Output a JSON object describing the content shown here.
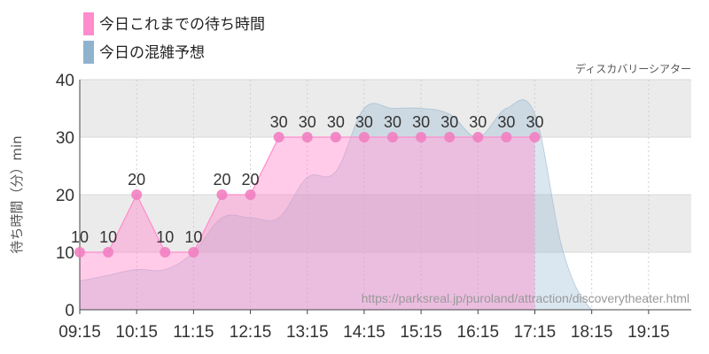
{
  "chart_data": {
    "type": "area",
    "legend_position": "top-left",
    "attraction_name": "ディスカバリーシアター",
    "ylabel": "待ち時間（分）min",
    "ylim": [
      0,
      40
    ],
    "yticks": [
      "0",
      "10",
      "20",
      "30",
      "40"
    ],
    "xticks": [
      "09:15",
      "10:15",
      "11:15",
      "12:15",
      "13:15",
      "14:15",
      "15:15",
      "16:15",
      "17:15",
      "18:15",
      "19:15"
    ],
    "xrange_hours": [
      9.25,
      20.0
    ],
    "grid": true,
    "series": [
      {
        "name": "今日これまでの待ち時間",
        "color": "#ff8ccc",
        "points": [
          {
            "t": "09:15",
            "v": 10
          },
          {
            "t": "09:45",
            "v": 10
          },
          {
            "t": "10:15",
            "v": 20
          },
          {
            "t": "10:45",
            "v": 10
          },
          {
            "t": "11:15",
            "v": 10
          },
          {
            "t": "11:45",
            "v": 20
          },
          {
            "t": "12:15",
            "v": 20
          },
          {
            "t": "12:45",
            "v": 30
          },
          {
            "t": "13:15",
            "v": 30
          },
          {
            "t": "13:45",
            "v": 30
          },
          {
            "t": "14:15",
            "v": 30
          },
          {
            "t": "14:45",
            "v": 30
          },
          {
            "t": "15:15",
            "v": 30
          },
          {
            "t": "15:45",
            "v": 30
          },
          {
            "t": "16:15",
            "v": 30
          },
          {
            "t": "16:45",
            "v": 30
          },
          {
            "t": "17:15",
            "v": 30
          }
        ],
        "labels": [
          "10",
          "10",
          "20",
          "10",
          "10",
          "20",
          "20",
          "30",
          "30",
          "30",
          "30",
          "30",
          "30",
          "30",
          "30",
          "30",
          "30"
        ]
      },
      {
        "name": "今日の混雑予想",
        "color": "#8fb3cf",
        "points": [
          {
            "t": "09:15",
            "v": 5
          },
          {
            "t": "09:45",
            "v": 6
          },
          {
            "t": "10:15",
            "v": 7
          },
          {
            "t": "10:45",
            "v": 7
          },
          {
            "t": "11:15",
            "v": 10
          },
          {
            "t": "11:45",
            "v": 16
          },
          {
            "t": "12:15",
            "v": 16
          },
          {
            "t": "12:45",
            "v": 16
          },
          {
            "t": "13:15",
            "v": 23
          },
          {
            "t": "13:45",
            "v": 24
          },
          {
            "t": "14:15",
            "v": 35
          },
          {
            "t": "14:45",
            "v": 35
          },
          {
            "t": "15:15",
            "v": 35
          },
          {
            "t": "15:45",
            "v": 34
          },
          {
            "t": "16:15",
            "v": 30
          },
          {
            "t": "16:45",
            "v": 35
          },
          {
            "t": "17:15",
            "v": 34
          },
          {
            "t": "17:45",
            "v": 10
          },
          {
            "t": "18:15",
            "v": 0
          },
          {
            "t": "18:45",
            "v": 0
          },
          {
            "t": "19:15",
            "v": 0
          },
          {
            "t": "19:45",
            "v": 0
          },
          {
            "t": "20:00",
            "v": 0
          }
        ]
      }
    ],
    "source_url": "https://parksreal.jp/puroland/attraction/discoverytheater.html"
  }
}
